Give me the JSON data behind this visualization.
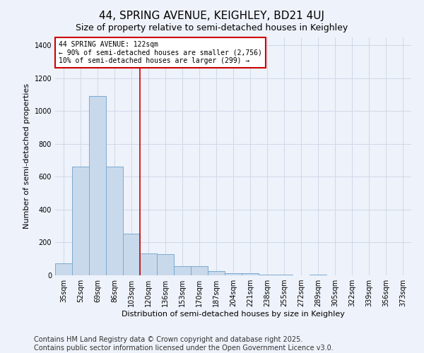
{
  "title": "44, SPRING AVENUE, KEIGHLEY, BD21 4UJ",
  "subtitle": "Size of property relative to semi-detached houses in Keighley",
  "xlabel": "Distribution of semi-detached houses by size in Keighley",
  "ylabel": "Number of semi-detached properties",
  "categories": [
    "35sqm",
    "52sqm",
    "69sqm",
    "86sqm",
    "103sqm",
    "120sqm",
    "136sqm",
    "153sqm",
    "170sqm",
    "187sqm",
    "204sqm",
    "221sqm",
    "238sqm",
    "255sqm",
    "272sqm",
    "289sqm",
    "305sqm",
    "322sqm",
    "339sqm",
    "356sqm",
    "373sqm"
  ],
  "values": [
    75,
    660,
    1090,
    660,
    255,
    135,
    130,
    55,
    55,
    25,
    15,
    12,
    5,
    5,
    2,
    5,
    0,
    2,
    0,
    0,
    0
  ],
  "bar_color": "#c9d9ec",
  "bar_edge_color": "#7aaacf",
  "vline_index": 5,
  "annotation_text": "44 SPRING AVENUE: 122sqm\n← 90% of semi-detached houses are smaller (2,756)\n10% of semi-detached houses are larger (299) →",
  "annotation_box_color": "#ffffff",
  "annotation_box_edge": "#cc0000",
  "vline_color": "#cc0000",
  "ylim": [
    0,
    1450
  ],
  "yticks": [
    0,
    200,
    400,
    600,
    800,
    1000,
    1200,
    1400
  ],
  "footer_text": "Contains HM Land Registry data © Crown copyright and database right 2025.\nContains public sector information licensed under the Open Government Licence v3.0.",
  "bg_color": "#eef2fa",
  "plot_bg_color": "#eef2fa",
  "grid_color": "#d0d8e8",
  "title_fontsize": 11,
  "axis_fontsize": 8,
  "tick_fontsize": 7,
  "footer_fontsize": 7
}
